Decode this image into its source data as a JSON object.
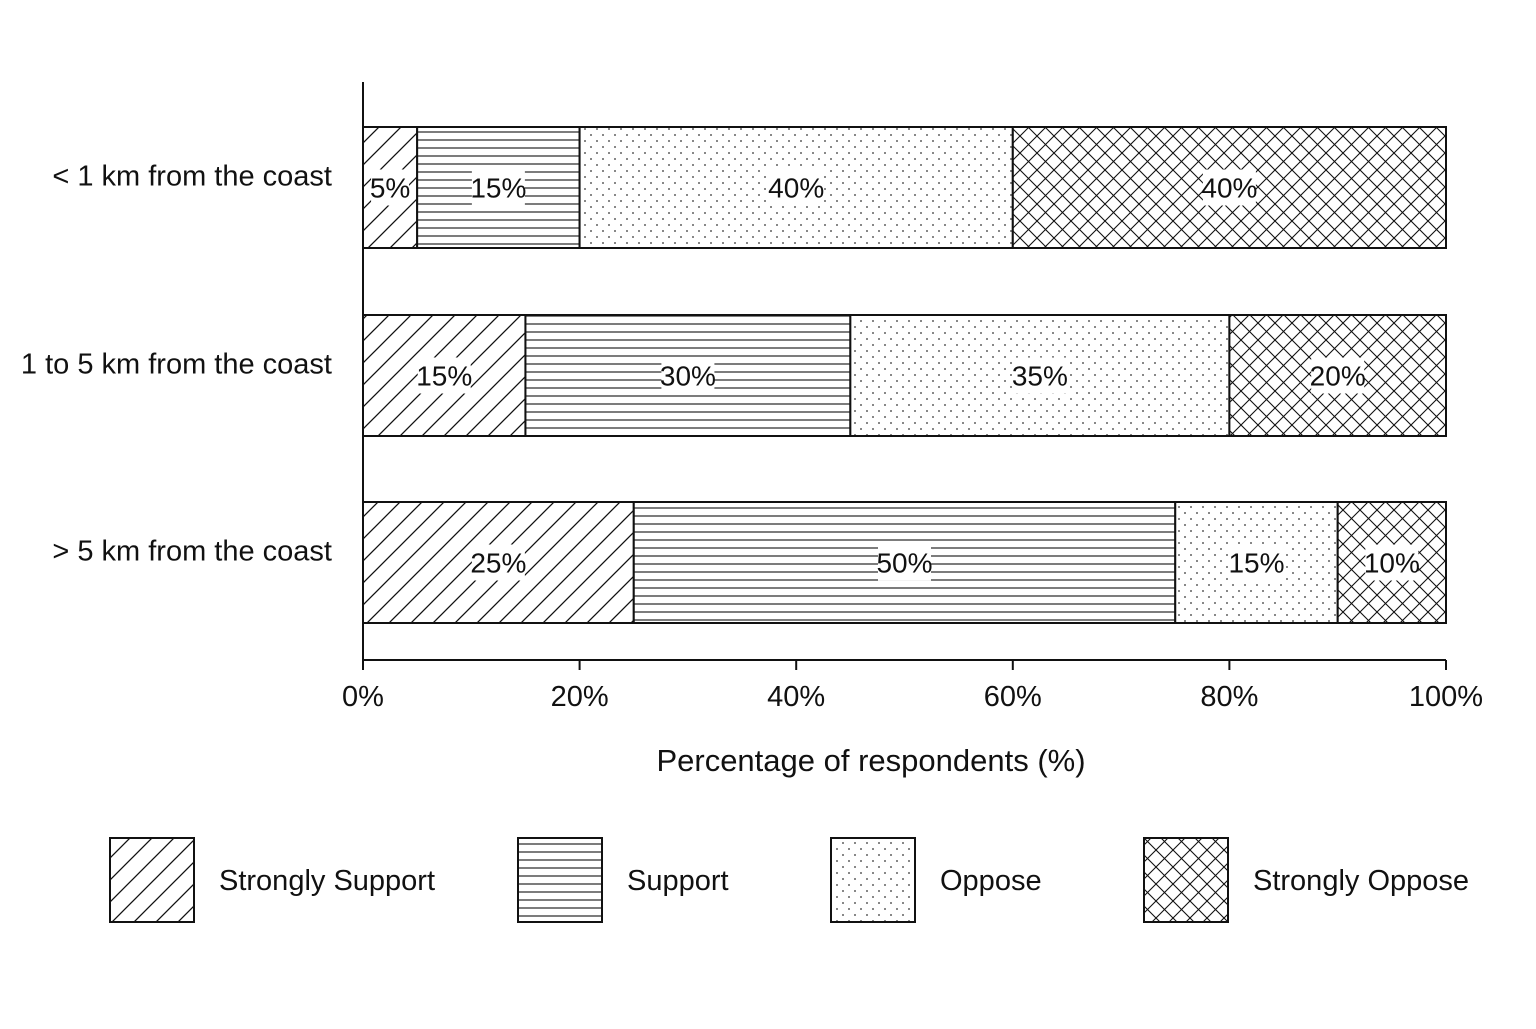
{
  "chart_data": {
    "type": "bar",
    "orientation": "horizontal",
    "stacked": true,
    "categories": [
      "< 1 km from the coast",
      "1 to 5 km from the coast",
      "> 5 km from the coast"
    ],
    "series": [
      {
        "name": "Strongly Support",
        "pattern": "diagonal-hatch",
        "values": [
          5,
          15,
          25
        ],
        "labels": [
          "5%",
          "15%",
          "25%"
        ]
      },
      {
        "name": "Support",
        "pattern": "horizontal-lines",
        "values": [
          15,
          30,
          50
        ],
        "labels": [
          "15%",
          "30%",
          "50%"
        ]
      },
      {
        "name": "Oppose",
        "pattern": "dots",
        "values": [
          40,
          35,
          15
        ],
        "labels": [
          "40%",
          "35%",
          "15%"
        ]
      },
      {
        "name": "Strongly Oppose",
        "pattern": "crosshatch",
        "values": [
          40,
          20,
          10
        ],
        "labels": [
          "40%",
          "20%",
          "10%"
        ]
      }
    ],
    "xlabel": "Percentage of respondents (%)",
    "ylabel": "",
    "xlim": [
      0,
      100
    ],
    "xticks": [
      0,
      20,
      40,
      60,
      80,
      100
    ],
    "xtick_labels": [
      "0%",
      "20%",
      "40%",
      "60%",
      "80%",
      "100%"
    ],
    "grid": false,
    "legend_position": "bottom",
    "colors": {
      "ink": "#111111",
      "background": "#ffffff"
    }
  }
}
